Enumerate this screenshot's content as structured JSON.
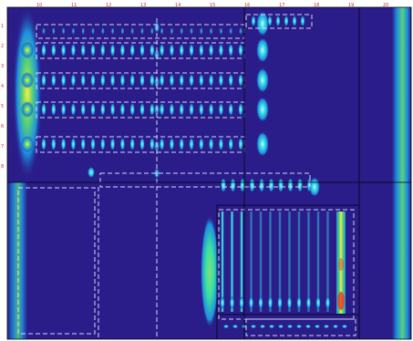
{
  "colors": {
    "background": "#2a1d8a",
    "border_frame": "#ffffff",
    "ruler": "#cc3333",
    "gradient_low": "#2a1d8a",
    "gradient_mid": "#1e8fe0",
    "gradient_cyan": "#3be0e0",
    "gradient_green": "#58d27a",
    "gradient_yellow": "#f5f03a",
    "gradient_red": "#e83a22",
    "wire_dashed": "#e8e8ff",
    "wire_solid": "#000000"
  },
  "ruler": {
    "top_ticks": [
      "10",
      "11",
      "12",
      "13",
      "14",
      "15",
      "16",
      "17",
      "18",
      "19",
      "20"
    ],
    "left_ticks": [
      "1",
      "2",
      "3",
      "4",
      "5",
      "6",
      "7",
      "8"
    ]
  }
}
